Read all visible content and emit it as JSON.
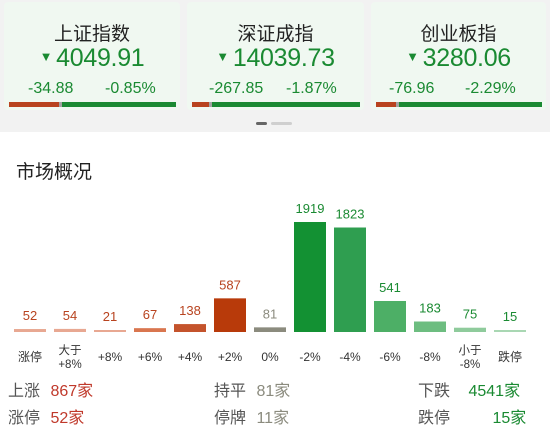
{
  "indices": [
    {
      "name": "上证指数",
      "price": "4049.91",
      "change": "-34.88",
      "percent": "-0.85%",
      "bar": [
        0.3,
        0.02,
        0.68
      ]
    },
    {
      "name": "深证成指",
      "price": "14039.73",
      "change": "-267.85",
      "percent": "-1.87%",
      "bar": [
        0.1,
        0.02,
        0.88
      ]
    },
    {
      "name": "创业板指",
      "price": "3280.06",
      "change": "-76.96",
      "percent": "-2.29%",
      "bar": [
        0.12,
        0.02,
        0.86
      ]
    }
  ],
  "down_arrow": "▼",
  "market": {
    "title": "市场概况",
    "chart_data": {
      "type": "bar",
      "categories": [
        "涨停",
        "大于+8%",
        "+8%",
        "+6%",
        "+4%",
        "+2%",
        "0%",
        "-2%",
        "-4%",
        "-6%",
        "-8%",
        "小于-8%",
        "跌停"
      ],
      "values": [
        52,
        54,
        21,
        67,
        138,
        587,
        81,
        1919,
        1823,
        541,
        183,
        75,
        15
      ],
      "colors": [
        "#e8a892",
        "#e8a892",
        "#e8a892",
        "#d9764f",
        "#c4532c",
        "#b83a0a",
        "#8b8b7e",
        "#139133",
        "#2f9e50",
        "#4daf66",
        "#6dbd80",
        "#8fcb9c",
        "#a9d7b3"
      ],
      "ylim": [
        0,
        1919
      ]
    },
    "stats": {
      "up_label": "上涨",
      "up_value": "867家",
      "flat_label": "持平",
      "flat_value": "81家",
      "down_label": "下跌",
      "down_value": "4541家",
      "limit_up_label": "涨停",
      "limit_up_value": "52家",
      "suspended_label": "停牌",
      "suspended_value": "11家",
      "limit_down_label": "跌停",
      "limit_down_value": "15家"
    },
    "colors": {
      "red": "#c0392b",
      "green": "#1a8a32",
      "gray": "#8b8b7e"
    }
  }
}
